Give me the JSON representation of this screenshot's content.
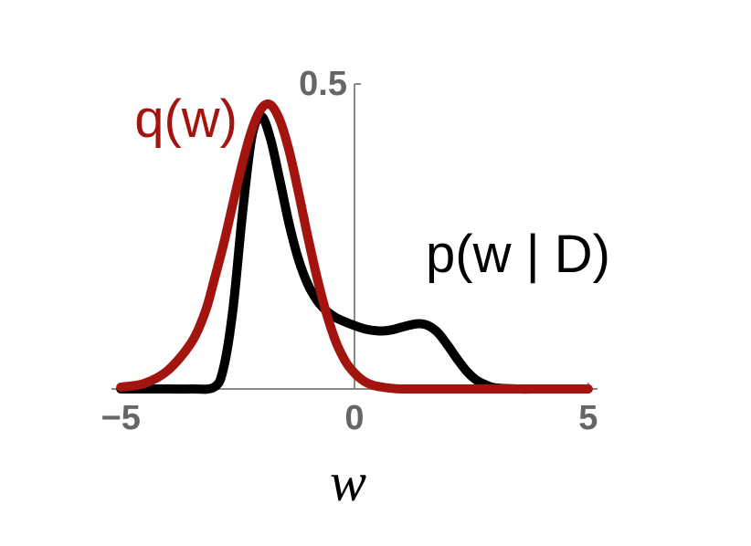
{
  "chart_data": {
    "type": "line",
    "title": "",
    "xlabel": "w",
    "ylabel": "",
    "xlim": [
      -5.2,
      5.2
    ],
    "ylim": [
      0,
      0.5
    ],
    "x_ticks": [
      {
        "value": -5,
        "label": "−5"
      },
      {
        "value": 0,
        "label": "0"
      },
      {
        "value": 5,
        "label": "5"
      }
    ],
    "y_ticks": [
      {
        "value": 0.5,
        "label": "0.5"
      }
    ],
    "grid": false,
    "series": [
      {
        "name": "p(w | D)",
        "color": "#000000",
        "x": [
          -5,
          -4,
          -3.5,
          -3,
          -2.8,
          -2.6,
          -2.4,
          -2.2,
          -2.0,
          -1.8,
          -1.6,
          -1.4,
          -1.2,
          -1.0,
          -0.8,
          -0.6,
          -0.4,
          -0.2,
          0.0,
          0.2,
          0.4,
          0.6,
          0.8,
          1.0,
          1.2,
          1.4,
          1.6,
          1.8,
          2.0,
          2.2,
          2.4,
          2.6,
          2.8,
          3.0,
          3.5,
          4.0,
          5.0
        ],
        "y": [
          0.0,
          0.0,
          0.0,
          0.003,
          0.035,
          0.131,
          0.285,
          0.412,
          0.447,
          0.411,
          0.343,
          0.271,
          0.213,
          0.172,
          0.145,
          0.128,
          0.117,
          0.11,
          0.104,
          0.099,
          0.096,
          0.095,
          0.097,
          0.101,
          0.105,
          0.107,
          0.103,
          0.091,
          0.071,
          0.049,
          0.029,
          0.015,
          0.007,
          0.002,
          0.0,
          0.0,
          0.0
        ]
      },
      {
        "name": "q(w)",
        "color": "#a3140f",
        "x": [
          -5,
          -4.5,
          -4.0,
          -3.5,
          -3.2,
          -3.0,
          -2.8,
          -2.6,
          -2.4,
          -2.2,
          -2.0,
          -1.8,
          -1.6,
          -1.4,
          -1.2,
          -1.0,
          -0.8,
          -0.6,
          -0.4,
          -0.2,
          0.0,
          0.2,
          0.4,
          0.6,
          0.8,
          1.0,
          1.5,
          2.0,
          3.0,
          5.0
        ],
        "y": [
          0.003,
          0.009,
          0.03,
          0.075,
          0.125,
          0.179,
          0.238,
          0.304,
          0.369,
          0.424,
          0.459,
          0.466,
          0.441,
          0.391,
          0.323,
          0.25,
          0.182,
          0.124,
          0.078,
          0.046,
          0.026,
          0.013,
          0.006,
          0.003,
          0.001,
          0.0,
          0.0,
          0.0,
          0.0,
          0.0
        ]
      }
    ]
  }
}
